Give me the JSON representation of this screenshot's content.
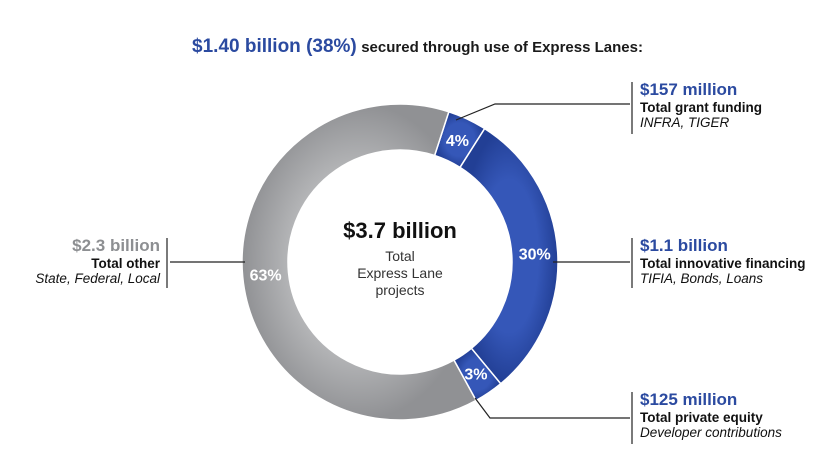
{
  "headline": {
    "strong": "$1.40 billion (38%)",
    "rest": "secured through use of Express Lanes:"
  },
  "center": {
    "amount": "$3.7 billion",
    "line1": "Total",
    "line2": "Express Lane",
    "line3": "projects"
  },
  "callouts": {
    "grant": {
      "amount": "$157 million",
      "desc": "Total grant funding",
      "sub": "INFRA, TIGER"
    },
    "innovative": {
      "amount": "$1.1 billion",
      "desc": "Total innovative financing",
      "sub": "TIFIA, Bonds, Loans"
    },
    "private": {
      "amount": "$125 million",
      "desc": "Total private equity",
      "sub": "Developer contributions"
    },
    "other": {
      "amount": "$2.3 billion",
      "desc": "Total other",
      "sub": "State, Federal, Local"
    }
  },
  "chart_data": {
    "type": "pie",
    "donut": true,
    "slices": [
      {
        "label": "4%",
        "value": 4,
        "color": "#2b4aa0"
      },
      {
        "label": "30%",
        "value": 30,
        "color": "#2b4aa0"
      },
      {
        "label": "3%",
        "value": 3,
        "color": "#2b4aa0"
      },
      {
        "label": "63%",
        "value": 63,
        "color": "#98999c"
      }
    ]
  }
}
